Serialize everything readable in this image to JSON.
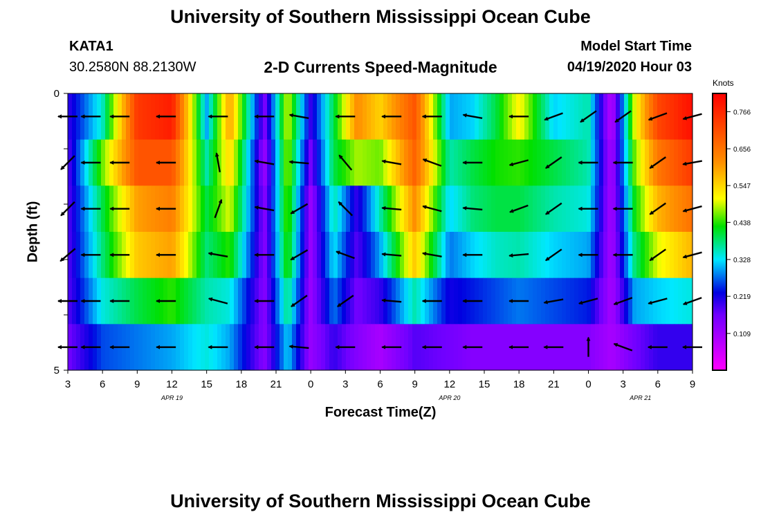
{
  "header": {
    "title": "University of Southern Mississippi Ocean Cube",
    "station": "KATA1",
    "coords": "30.2580N 88.2130W",
    "chart_title": "2-D Currents Speed-Magnitude",
    "model_start_label": "Model Start Time",
    "model_start_value": "04/19/2020 Hour 03"
  },
  "footer": {
    "title": "University of Southern Mississippi Ocean Cube"
  },
  "colorbar": {
    "units": "Knots",
    "ticks": [
      "0.109",
      "0.219",
      "0.328",
      "0.438",
      "0.547",
      "0.656",
      "0.766"
    ]
  },
  "chart_data": {
    "type": "heatmap",
    "xlabel": "Forecast Time(Z)",
    "ylabel": "Depth (ft)",
    "x_tick_labels": [
      "3",
      "6",
      "9",
      "12",
      "15",
      "18",
      "21",
      "0",
      "3",
      "6",
      "9",
      "12",
      "15",
      "18",
      "21",
      "0",
      "3",
      "6",
      "9"
    ],
    "date_labels": [
      {
        "label": "APR 19",
        "at_tick": 3
      },
      {
        "label": "APR 20",
        "at_tick": 11
      },
      {
        "label": "APR 21",
        "at_tick": 16.5
      }
    ],
    "xlim": [
      0,
      54
    ],
    "y_tick_labels": [
      "0",
      "5"
    ],
    "ylim": [
      0,
      5
    ],
    "depth_rows": [
      0,
      1,
      2,
      3,
      4,
      5
    ],
    "value_range": [
      0,
      0.82
    ],
    "speed_keys_hours": [
      0,
      3,
      6,
      9,
      12,
      14,
      17,
      19,
      21,
      23,
      25,
      27,
      30,
      33,
      35,
      37,
      39,
      42,
      45,
      47,
      49,
      51,
      54
    ],
    "speed_by_depth": [
      [
        0.2,
        0.35,
        0.74,
        0.78,
        0.3,
        0.6,
        0.15,
        0.5,
        0.2,
        0.4,
        0.62,
        0.55,
        0.7,
        0.3,
        0.32,
        0.4,
        0.52,
        0.32,
        0.36,
        0.08,
        0.5,
        0.72,
        0.8
      ],
      [
        0.18,
        0.46,
        0.7,
        0.7,
        0.36,
        0.55,
        0.12,
        0.48,
        0.16,
        0.4,
        0.48,
        0.46,
        0.68,
        0.36,
        0.4,
        0.43,
        0.44,
        0.4,
        0.36,
        0.1,
        0.46,
        0.65,
        0.74
      ],
      [
        0.18,
        0.4,
        0.6,
        0.64,
        0.4,
        0.5,
        0.14,
        0.46,
        0.12,
        0.36,
        0.2,
        0.36,
        0.62,
        0.32,
        0.38,
        0.4,
        0.4,
        0.36,
        0.34,
        0.1,
        0.42,
        0.58,
        0.66
      ],
      [
        0.18,
        0.38,
        0.56,
        0.6,
        0.38,
        0.44,
        0.14,
        0.44,
        0.12,
        0.33,
        0.18,
        0.3,
        0.56,
        0.28,
        0.32,
        0.35,
        0.36,
        0.32,
        0.3,
        0.1,
        0.38,
        0.5,
        0.58
      ],
      [
        0.18,
        0.34,
        0.4,
        0.44,
        0.36,
        0.34,
        0.14,
        0.38,
        0.12,
        0.28,
        0.16,
        0.2,
        0.36,
        0.22,
        0.24,
        0.26,
        0.28,
        0.26,
        0.24,
        0.1,
        0.3,
        0.32,
        0.34
      ],
      [
        0.16,
        0.26,
        0.28,
        0.3,
        0.34,
        0.3,
        0.14,
        0.32,
        0.12,
        0.2,
        0.14,
        0.1,
        0.18,
        0.16,
        0.14,
        0.14,
        0.14,
        0.14,
        0.14,
        0.1,
        0.16,
        0.2,
        0.2
      ]
    ],
    "vector_hours": [
      0,
      2,
      4.5,
      8.5,
      13,
      17,
      20,
      24,
      28,
      31.5,
      35,
      39,
      42,
      45,
      48,
      51,
      54
    ],
    "vector_angle_by_depth_deg": [
      [
        180,
        180,
        180,
        180,
        180,
        180,
        170,
        180,
        180,
        180,
        170,
        180,
        200,
        215,
        215,
        200,
        195
      ],
      [
        225,
        180,
        180,
        180,
        100,
        170,
        175,
        130,
        170,
        160,
        180,
        195,
        215,
        180,
        180,
        215,
        190
      ],
      [
        225,
        180,
        180,
        180,
        70,
        170,
        210,
        135,
        175,
        165,
        175,
        200,
        215,
        180,
        180,
        215,
        195
      ],
      [
        220,
        180,
        180,
        180,
        170,
        180,
        210,
        160,
        175,
        170,
        180,
        185,
        215,
        180,
        180,
        215,
        195
      ],
      [
        180,
        180,
        180,
        180,
        165,
        180,
        215,
        215,
        175,
        180,
        180,
        180,
        190,
        195,
        200,
        195,
        200
      ],
      [
        180,
        180,
        180,
        180,
        180,
        180,
        175,
        180,
        180,
        180,
        180,
        180,
        180,
        90,
        160,
        180,
        180
      ]
    ]
  }
}
